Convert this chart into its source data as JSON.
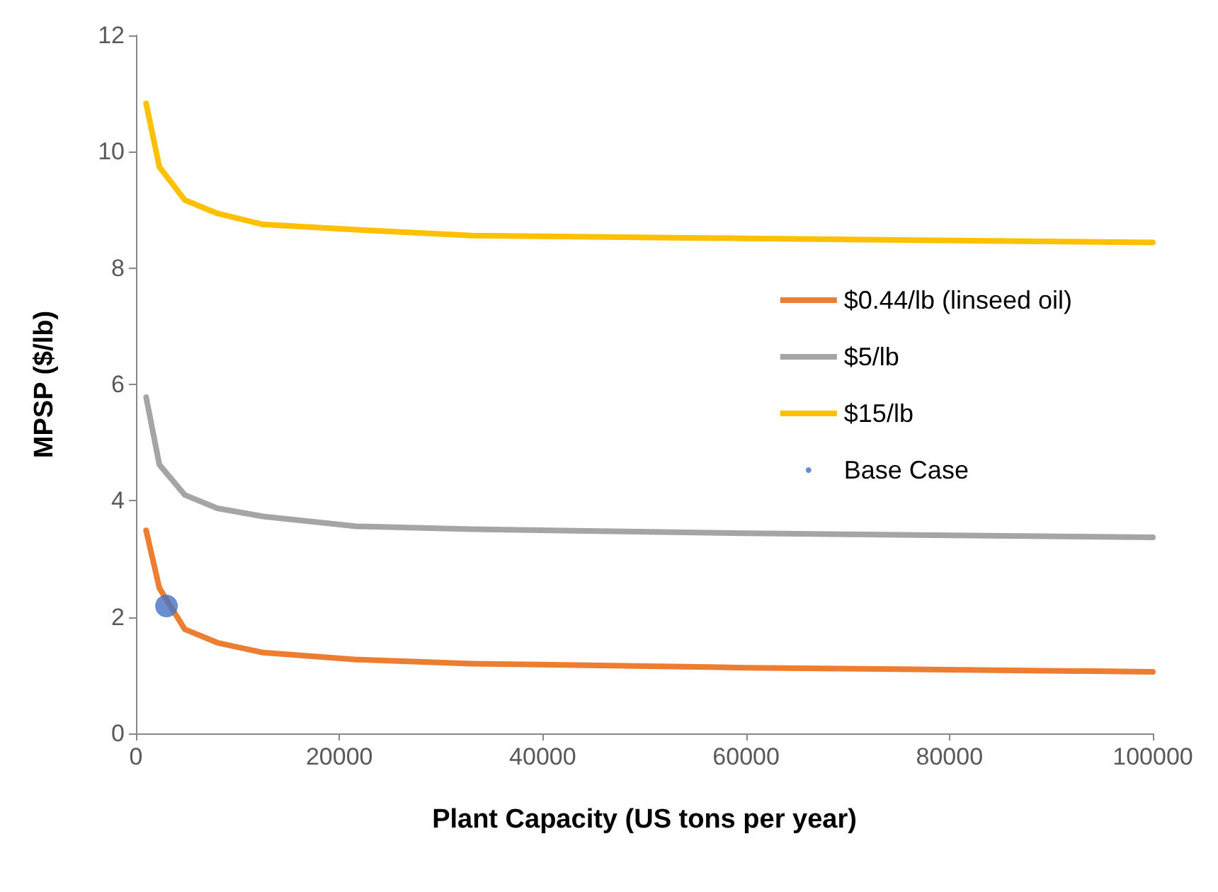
{
  "chart_data": {
    "type": "line",
    "xlabel": "Plant Capacity (US tons per year)",
    "ylabel": "MPSP ($/lb)",
    "xlim": [
      0,
      100000
    ],
    "xticks": [
      0,
      20000,
      40000,
      60000,
      80000,
      100000
    ],
    "ylim": [
      0,
      12
    ],
    "yticks": [
      0,
      2,
      4,
      6,
      8,
      10,
      12
    ],
    "grid": false,
    "legend": "right",
    "marker": "none",
    "line_style": "solid",
    "series": [
      {
        "name": "$0.44/lb (linseed oil)",
        "color": "#ed7d31",
        "x": [
          1000,
          2300,
          4800,
          8000,
          12500,
          21700,
          33000,
          60000,
          100000
        ],
        "values": [
          3.49,
          2.5,
          1.79,
          1.56,
          1.39,
          1.27,
          1.2,
          1.13,
          1.06
        ]
      },
      {
        "name": "$5/lb",
        "color": "#a5a5a5",
        "x": [
          1000,
          2300,
          4800,
          8000,
          12500,
          21700,
          33000,
          60000,
          100000
        ],
        "values": [
          5.78,
          4.62,
          4.1,
          3.87,
          3.73,
          3.56,
          3.51,
          3.44,
          3.37
        ]
      },
      {
        "name": "$15/lb",
        "color": "#ffc000",
        "x": [
          1000,
          2300,
          4800,
          8000,
          12500,
          21700,
          33000,
          60000,
          100000
        ],
        "values": [
          10.83,
          9.74,
          9.17,
          8.94,
          8.75,
          8.66,
          8.56,
          8.51,
          8.44
        ]
      },
      {
        "name": "Base Case",
        "type": "scatter",
        "marker": "circle",
        "color": "#4472c4",
        "x": [
          3000
        ],
        "values": [
          2.19
        ]
      }
    ]
  }
}
